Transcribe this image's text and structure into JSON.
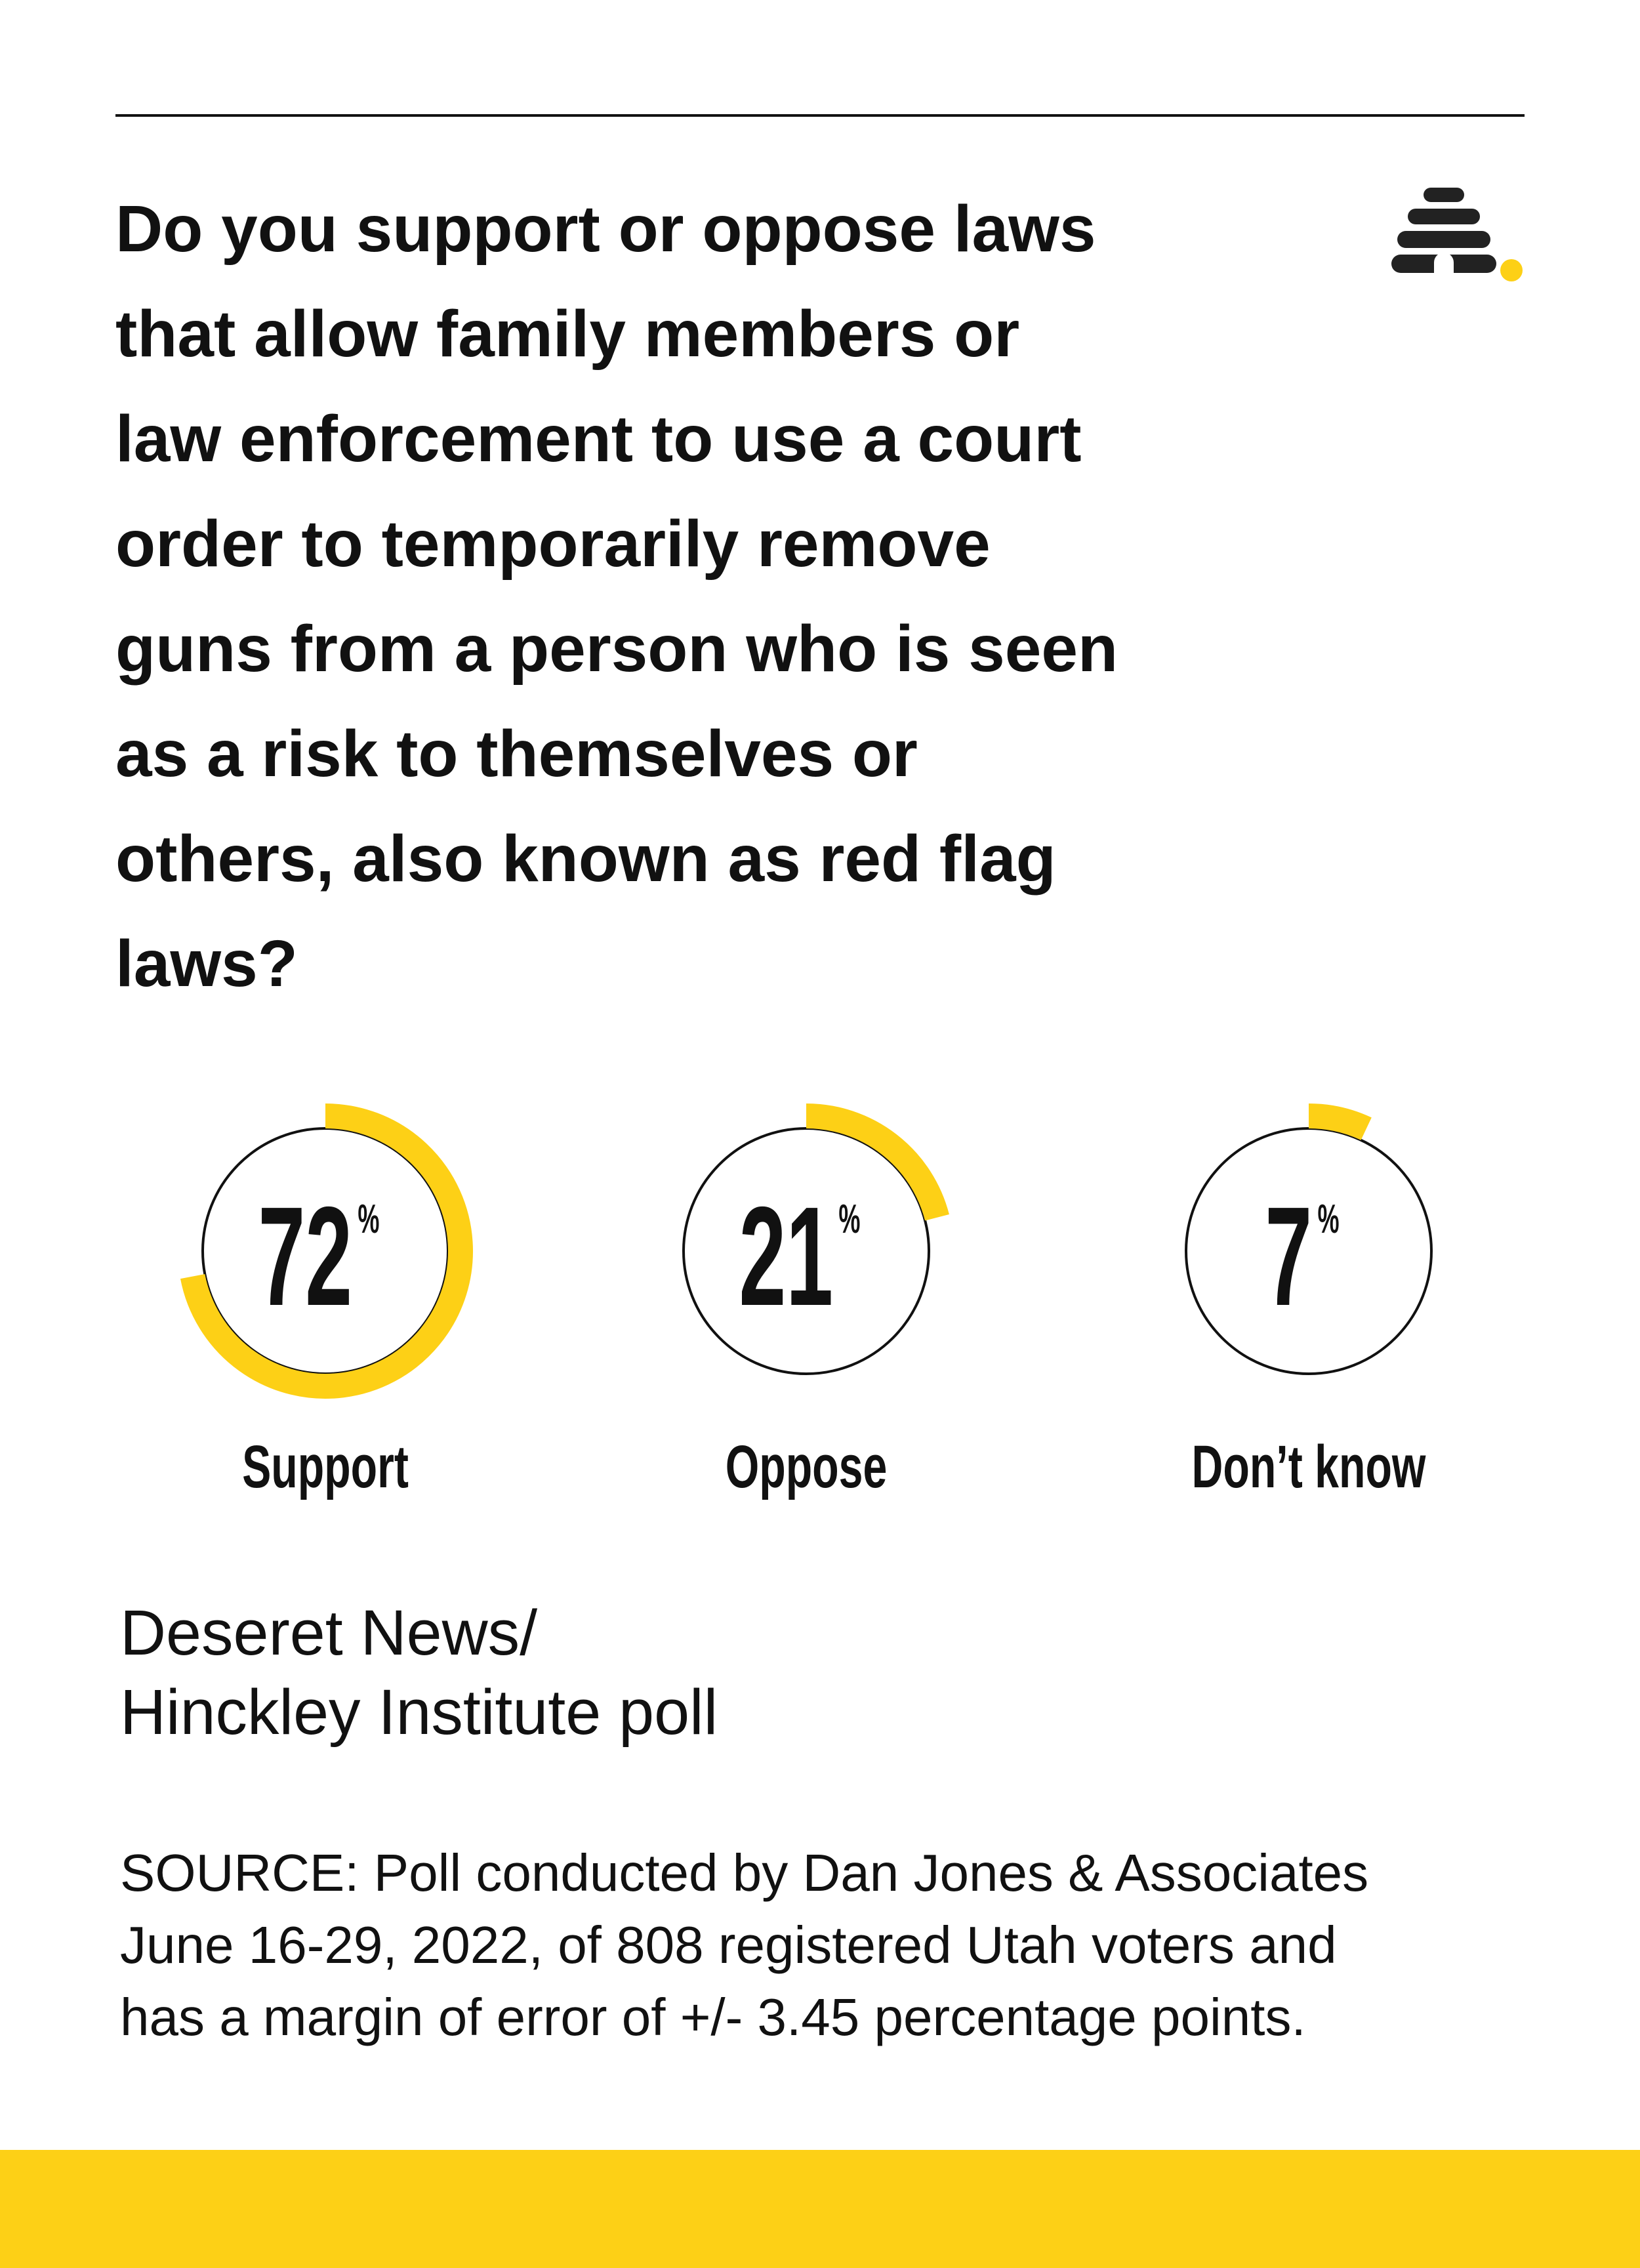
{
  "chart_data": {
    "type": "gauge",
    "title_lines": [
      "Do you support or oppose laws",
      "that allow family members or",
      "law enforcement to use a court",
      "order to temporarily remove",
      "guns from a person who is seen",
      "as a risk to themselves or",
      "others, also known as red flag",
      "laws?"
    ],
    "categories": [
      "Support",
      "Oppose",
      "Don’t know"
    ],
    "values": [
      72,
      21,
      7
    ],
    "value_suffix": "%",
    "ylim": [
      0,
      100
    ],
    "color": "#fdd016",
    "credit_lines": [
      "Deseret News/",
      "Hinckley Institute poll"
    ],
    "source_lines": [
      "SOURCE: Poll conducted by Dan Jones & Associates",
      "June 16-29, 2022, of 808 registered Utah voters and",
      "has a margin of error of +/- 3.45 percentage points."
    ]
  }
}
